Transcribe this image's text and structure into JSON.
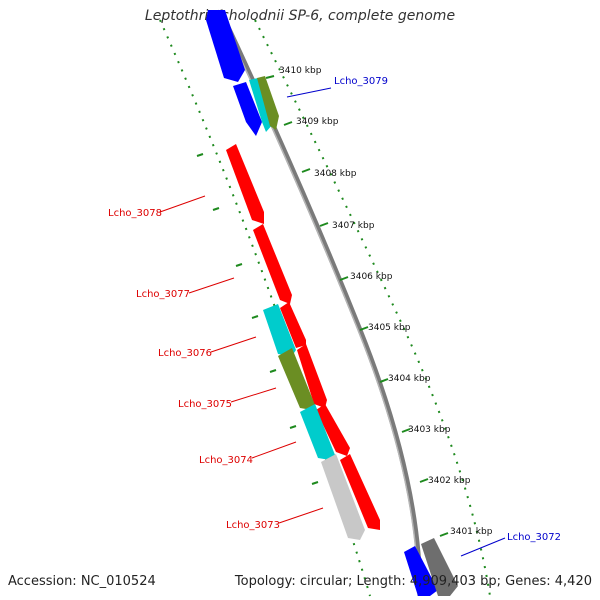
{
  "title": "Leptothrix cholodnii SP-6, complete genome",
  "accession": "Accession: NC_010524",
  "summary": "Topology: circular; Length: 4,909,403 bp; Genes: 4,420",
  "colors": {
    "backbone": "#8a8a8a",
    "scale": "#1e8a1e",
    "red": "#ff0000",
    "blue": "#0000ff",
    "cyan": "#00cccc",
    "olive": "#6b8e23",
    "silver": "#c8c8c8",
    "darkgray": "#6e6e6e",
    "label_red": "#dd0000",
    "label_blue": "#0000cc"
  },
  "scale_labels": [
    "3410 kbp",
    "3409 kbp",
    "3408 kbp",
    "3407 kbp",
    "3406 kbp",
    "3405 kbp",
    "3404 kbp",
    "3403 kbp",
    "3402 kbp",
    "3401 kbp"
  ],
  "gene_labels": [
    {
      "text": "Lcho_3079",
      "color": "blue"
    },
    {
      "text": "Lcho_3078",
      "color": "red"
    },
    {
      "text": "Lcho_3077",
      "color": "red"
    },
    {
      "text": "Lcho_3076",
      "color": "red"
    },
    {
      "text": "Lcho_3075",
      "color": "red"
    },
    {
      "text": "Lcho_3074",
      "color": "red"
    },
    {
      "text": "Lcho_3073",
      "color": "red"
    },
    {
      "text": "Lcho_3072",
      "color": "blue"
    }
  ]
}
